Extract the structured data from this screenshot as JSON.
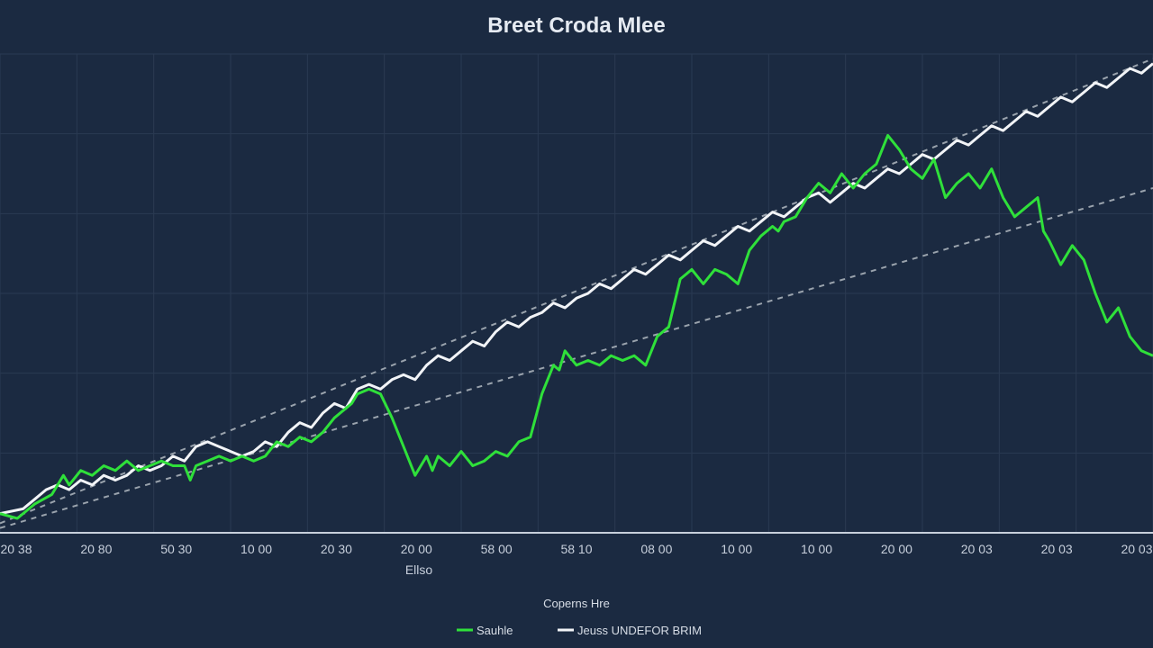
{
  "chart_data": {
    "type": "line",
    "title": "Breet Croda Mlee",
    "xlabel": "Ellso",
    "ylabel": "",
    "x_ticks": [
      "20 38",
      "20 80",
      "50 30",
      "10 00",
      "20 30",
      "20 00",
      "58 00",
      "58 10",
      "08 00",
      "10 00",
      "10 00",
      "20 00",
      "20 03",
      "20 03",
      "20 03"
    ],
    "x_range": [
      0,
      100
    ],
    "y_range": [
      0,
      100
    ],
    "grid": true,
    "legend_title": "Coperns Hre",
    "legend_position": "bottom-center",
    "colors": {
      "background": "#1b2a41",
      "grid": "#2a3a52",
      "green": "#2fe03a",
      "white": "#f2f4f7",
      "dashed": "#9aa3ad"
    },
    "series": [
      {
        "name": "Sauhle",
        "color": "#2fe03a",
        "style": "solid",
        "points": [
          [
            0,
            4
          ],
          [
            1.5,
            3
          ],
          [
            3,
            6
          ],
          [
            4.5,
            8
          ],
          [
            5.5,
            12
          ],
          [
            6,
            10
          ],
          [
            7,
            13
          ],
          [
            8,
            12
          ],
          [
            9,
            14
          ],
          [
            10,
            13
          ],
          [
            11,
            15
          ],
          [
            12,
            13
          ],
          [
            13,
            14
          ],
          [
            14,
            15
          ],
          [
            15,
            14
          ],
          [
            16,
            14
          ],
          [
            16.5,
            11
          ],
          [
            17,
            14
          ],
          [
            18,
            15
          ],
          [
            19,
            16
          ],
          [
            20,
            15
          ],
          [
            21,
            16
          ],
          [
            22,
            15
          ],
          [
            23,
            16
          ],
          [
            24,
            19
          ],
          [
            25,
            18
          ],
          [
            26,
            20
          ],
          [
            27,
            19
          ],
          [
            28,
            21
          ],
          [
            29,
            24
          ],
          [
            30,
            26
          ],
          [
            30.5,
            27
          ],
          [
            31,
            29
          ],
          [
            32,
            30
          ],
          [
            33,
            29
          ],
          [
            34,
            24
          ],
          [
            35,
            18
          ],
          [
            36,
            12
          ],
          [
            37,
            16
          ],
          [
            37.5,
            13
          ],
          [
            38,
            16
          ],
          [
            39,
            14
          ],
          [
            40,
            17
          ],
          [
            41,
            14
          ],
          [
            42,
            15
          ],
          [
            43,
            17
          ],
          [
            44,
            16
          ],
          [
            45,
            19
          ],
          [
            46,
            20
          ],
          [
            47,
            29
          ],
          [
            48,
            35
          ],
          [
            48.5,
            34
          ],
          [
            49,
            38
          ],
          [
            50,
            35
          ],
          [
            51,
            36
          ],
          [
            52,
            35
          ],
          [
            53,
            37
          ],
          [
            54,
            36
          ],
          [
            55,
            37
          ],
          [
            56,
            35
          ],
          [
            57,
            41
          ],
          [
            58,
            43
          ],
          [
            59,
            53
          ],
          [
            60,
            55
          ],
          [
            61,
            52
          ],
          [
            62,
            55
          ],
          [
            63,
            54
          ],
          [
            64,
            52
          ],
          [
            65,
            59
          ],
          [
            66,
            62
          ],
          [
            67,
            64
          ],
          [
            67.5,
            63
          ],
          [
            68,
            65
          ],
          [
            69,
            66
          ],
          [
            70,
            70
          ],
          [
            71,
            73
          ],
          [
            72,
            71
          ],
          [
            73,
            75
          ],
          [
            74,
            72
          ],
          [
            75,
            75
          ],
          [
            76,
            77
          ],
          [
            77,
            83
          ],
          [
            78,
            80
          ],
          [
            79,
            76
          ],
          [
            80,
            74
          ],
          [
            81,
            78
          ],
          [
            82,
            70
          ],
          [
            83,
            73
          ],
          [
            84,
            75
          ],
          [
            85,
            72
          ],
          [
            86,
            76
          ],
          [
            87,
            70
          ],
          [
            88,
            66
          ],
          [
            89,
            68
          ],
          [
            90,
            70
          ],
          [
            90.5,
            63
          ],
          [
            91,
            61
          ],
          [
            92,
            56
          ],
          [
            93,
            60
          ],
          [
            94,
            57
          ],
          [
            95,
            50
          ],
          [
            96,
            44
          ],
          [
            97,
            47
          ],
          [
            98,
            41
          ],
          [
            99,
            38
          ],
          [
            100,
            37
          ]
        ]
      },
      {
        "name": "Jeuss UNDEFOR BRIM",
        "color": "#f2f4f7",
        "style": "solid",
        "points": [
          [
            0,
            4
          ],
          [
            2,
            5
          ],
          [
            3,
            7
          ],
          [
            4,
            9
          ],
          [
            5,
            10
          ],
          [
            6,
            9
          ],
          [
            7,
            11
          ],
          [
            8,
            10
          ],
          [
            9,
            12
          ],
          [
            10,
            11
          ],
          [
            11,
            12
          ],
          [
            12,
            14
          ],
          [
            13,
            13
          ],
          [
            14,
            14
          ],
          [
            15,
            16
          ],
          [
            16,
            15
          ],
          [
            17,
            18
          ],
          [
            18,
            19
          ],
          [
            19,
            18
          ],
          [
            20,
            17
          ],
          [
            21,
            16
          ],
          [
            22,
            17
          ],
          [
            23,
            19
          ],
          [
            24,
            18
          ],
          [
            25,
            21
          ],
          [
            26,
            23
          ],
          [
            27,
            22
          ],
          [
            28,
            25
          ],
          [
            29,
            27
          ],
          [
            30,
            26
          ],
          [
            31,
            30
          ],
          [
            32,
            31
          ],
          [
            33,
            30
          ],
          [
            34,
            32
          ],
          [
            35,
            33
          ],
          [
            36,
            32
          ],
          [
            37,
            35
          ],
          [
            38,
            37
          ],
          [
            39,
            36
          ],
          [
            40,
            38
          ],
          [
            41,
            40
          ],
          [
            42,
            39
          ],
          [
            43,
            42
          ],
          [
            44,
            44
          ],
          [
            45,
            43
          ],
          [
            46,
            45
          ],
          [
            47,
            46
          ],
          [
            48,
            48
          ],
          [
            49,
            47
          ],
          [
            50,
            49
          ],
          [
            51,
            50
          ],
          [
            52,
            52
          ],
          [
            53,
            51
          ],
          [
            54,
            53
          ],
          [
            55,
            55
          ],
          [
            56,
            54
          ],
          [
            57,
            56
          ],
          [
            58,
            58
          ],
          [
            59,
            57
          ],
          [
            60,
            59
          ],
          [
            61,
            61
          ],
          [
            62,
            60
          ],
          [
            63,
            62
          ],
          [
            64,
            64
          ],
          [
            65,
            63
          ],
          [
            66,
            65
          ],
          [
            67,
            67
          ],
          [
            68,
            66
          ],
          [
            69,
            68
          ],
          [
            70,
            70
          ],
          [
            71,
            71
          ],
          [
            72,
            69
          ],
          [
            73,
            71
          ],
          [
            74,
            73
          ],
          [
            75,
            72
          ],
          [
            76,
            74
          ],
          [
            77,
            76
          ],
          [
            78,
            75
          ],
          [
            79,
            77
          ],
          [
            80,
            79
          ],
          [
            81,
            78
          ],
          [
            82,
            80
          ],
          [
            83,
            82
          ],
          [
            84,
            81
          ],
          [
            85,
            83
          ],
          [
            86,
            85
          ],
          [
            87,
            84
          ],
          [
            88,
            86
          ],
          [
            89,
            88
          ],
          [
            90,
            87
          ],
          [
            91,
            89
          ],
          [
            92,
            91
          ],
          [
            93,
            90
          ],
          [
            94,
            92
          ],
          [
            95,
            94
          ],
          [
            96,
            93
          ],
          [
            97,
            95
          ],
          [
            98,
            97
          ],
          [
            99,
            96
          ],
          [
            100,
            98
          ]
        ]
      },
      {
        "name": "trend-upper",
        "color": "#9aa3ad",
        "style": "dashed",
        "points": [
          [
            0,
            2
          ],
          [
            100,
            99
          ]
        ]
      },
      {
        "name": "trend-lower",
        "color": "#9aa3ad",
        "style": "dashed",
        "points": [
          [
            0,
            1
          ],
          [
            100,
            72
          ]
        ]
      }
    ]
  }
}
